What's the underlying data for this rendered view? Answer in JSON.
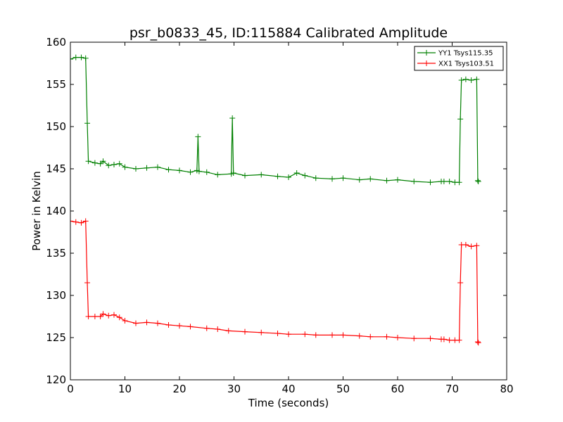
{
  "chart_data": {
    "type": "line",
    "title": "psr_b0833_45, ID:115884 Calibrated Amplitude",
    "xlabel": "Time (seconds)",
    "ylabel": "Power in Kelvin",
    "xlim": [
      0,
      80
    ],
    "ylim": [
      120,
      160
    ],
    "xticks": [
      0,
      10,
      20,
      30,
      40,
      50,
      60,
      70,
      80
    ],
    "yticks": [
      120,
      125,
      130,
      135,
      140,
      145,
      150,
      155,
      160
    ],
    "grid": false,
    "legend_position": "top-right",
    "marker": "+",
    "series": [
      {
        "name": "YY1 Tsys115.35",
        "color": "#008000",
        "points": [
          [
            0.0,
            158.0
          ],
          [
            1.0,
            158.2
          ],
          [
            2.0,
            158.2
          ],
          [
            2.8,
            158.1
          ],
          [
            3.1,
            150.4
          ],
          [
            3.3,
            145.9
          ],
          [
            4.5,
            145.7
          ],
          [
            5.5,
            145.6
          ],
          [
            6.0,
            145.9
          ],
          [
            7.0,
            145.4
          ],
          [
            8.0,
            145.5
          ],
          [
            9.0,
            145.6
          ],
          [
            10.0,
            145.2
          ],
          [
            12.0,
            145.0
          ],
          [
            14.0,
            145.1
          ],
          [
            16.0,
            145.2
          ],
          [
            18.0,
            144.9
          ],
          [
            20.0,
            144.8
          ],
          [
            22.0,
            144.6
          ],
          [
            23.2,
            144.8
          ],
          [
            23.4,
            148.8
          ],
          [
            23.6,
            144.7
          ],
          [
            25.0,
            144.6
          ],
          [
            27.0,
            144.3
          ],
          [
            29.5,
            144.4
          ],
          [
            29.7,
            151.0
          ],
          [
            29.9,
            144.5
          ],
          [
            32.0,
            144.2
          ],
          [
            35.0,
            144.3
          ],
          [
            38.0,
            144.1
          ],
          [
            40.0,
            144.0
          ],
          [
            41.5,
            144.5
          ],
          [
            43.0,
            144.2
          ],
          [
            45.0,
            143.9
          ],
          [
            48.0,
            143.8
          ],
          [
            50.0,
            143.9
          ],
          [
            53.0,
            143.7
          ],
          [
            55.0,
            143.8
          ],
          [
            58.0,
            143.6
          ],
          [
            60.0,
            143.7
          ],
          [
            63.0,
            143.5
          ],
          [
            66.0,
            143.4
          ],
          [
            68.0,
            143.5
          ],
          [
            68.5,
            143.5
          ],
          [
            69.5,
            143.5
          ],
          [
            70.5,
            143.4
          ],
          [
            71.3,
            143.4
          ],
          [
            71.5,
            150.9
          ],
          [
            71.7,
            155.5
          ],
          [
            72.5,
            155.6
          ],
          [
            73.5,
            155.5
          ],
          [
            74.5,
            155.6
          ],
          [
            74.7,
            143.6
          ],
          [
            74.8,
            143.5
          ]
        ]
      },
      {
        "name": "XX1 Tsys103.51",
        "color": "#ff0000",
        "points": [
          [
            0.0,
            138.8
          ],
          [
            1.0,
            138.7
          ],
          [
            2.0,
            138.6
          ],
          [
            2.8,
            138.8
          ],
          [
            3.1,
            131.5
          ],
          [
            3.3,
            127.5
          ],
          [
            4.5,
            127.5
          ],
          [
            5.5,
            127.5
          ],
          [
            6.0,
            127.8
          ],
          [
            7.0,
            127.6
          ],
          [
            8.0,
            127.7
          ],
          [
            9.0,
            127.4
          ],
          [
            10.0,
            127.0
          ],
          [
            12.0,
            126.7
          ],
          [
            14.0,
            126.8
          ],
          [
            16.0,
            126.7
          ],
          [
            18.0,
            126.5
          ],
          [
            20.0,
            126.4
          ],
          [
            22.0,
            126.3
          ],
          [
            25.0,
            126.1
          ],
          [
            27.0,
            126.0
          ],
          [
            29.0,
            125.8
          ],
          [
            32.0,
            125.7
          ],
          [
            35.0,
            125.6
          ],
          [
            38.0,
            125.5
          ],
          [
            40.0,
            125.4
          ],
          [
            43.0,
            125.4
          ],
          [
            45.0,
            125.3
          ],
          [
            48.0,
            125.3
          ],
          [
            50.0,
            125.3
          ],
          [
            53.0,
            125.2
          ],
          [
            55.0,
            125.1
          ],
          [
            58.0,
            125.1
          ],
          [
            60.0,
            125.0
          ],
          [
            63.0,
            124.9
          ],
          [
            66.0,
            124.9
          ],
          [
            68.0,
            124.8
          ],
          [
            68.5,
            124.8
          ],
          [
            69.5,
            124.7
          ],
          [
            70.5,
            124.7
          ],
          [
            71.3,
            124.7
          ],
          [
            71.5,
            131.5
          ],
          [
            71.7,
            136.0
          ],
          [
            72.5,
            136.0
          ],
          [
            73.5,
            135.8
          ],
          [
            74.5,
            135.9
          ],
          [
            74.7,
            124.5
          ],
          [
            74.8,
            124.4
          ]
        ]
      }
    ]
  }
}
